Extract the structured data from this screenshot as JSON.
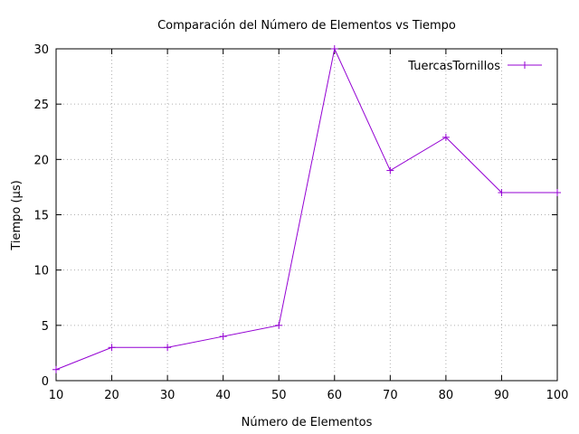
{
  "chart_data": {
    "type": "line",
    "title": "Comparación del Número de Elementos vs Tiempo",
    "xlabel": "Número de Elementos",
    "ylabel": "Tiempo (µs)",
    "xlim": [
      10,
      100
    ],
    "ylim": [
      0,
      30
    ],
    "x_ticks": [
      "10",
      "20",
      "30",
      "40",
      "50",
      "60",
      "70",
      "80",
      "90",
      "100"
    ],
    "y_ticks": [
      "0",
      "5",
      "10",
      "15",
      "20",
      "25",
      "30"
    ],
    "grid": true,
    "legend_position": "top-right",
    "series": [
      {
        "name": "TuercasTornillos",
        "color": "#9400d3",
        "marker": "plus",
        "x": [
          10,
          20,
          30,
          40,
          50,
          60,
          70,
          80,
          90,
          100
        ],
        "y": [
          1,
          3,
          3,
          4,
          5,
          30,
          19,
          22,
          17,
          17
        ]
      }
    ]
  }
}
